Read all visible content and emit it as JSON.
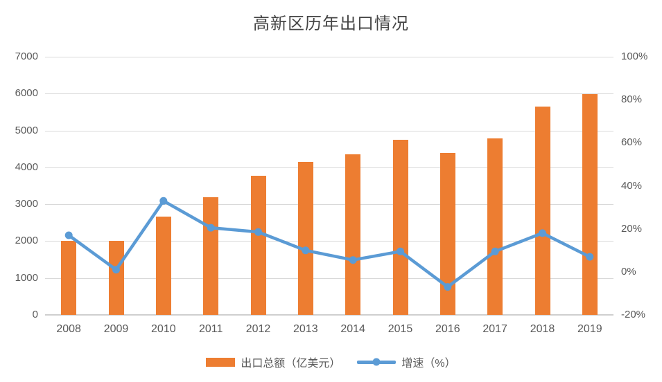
{
  "chart_data": {
    "type": "combo-bar-line",
    "title": "高新区历年出口情况",
    "categories": [
      "2008",
      "2009",
      "2010",
      "2011",
      "2012",
      "2013",
      "2014",
      "2015",
      "2016",
      "2017",
      "2018",
      "2019"
    ],
    "series": [
      {
        "name": "出口总额（亿美元）",
        "type": "bar",
        "axis": "left",
        "color": "#ED7D31",
        "values": [
          2000,
          2000,
          2660,
          3190,
          3780,
          4150,
          4350,
          4740,
          4400,
          4790,
          5650,
          5990
        ]
      },
      {
        "name": "增速（%）",
        "type": "line",
        "axis": "right",
        "color": "#5B9BD5",
        "values": [
          17,
          1,
          33,
          20.5,
          18.5,
          10,
          5.5,
          9.5,
          -7,
          9.5,
          18,
          7
        ]
      }
    ],
    "left_axis": {
      "min": 0,
      "max": 7000,
      "step": 1000,
      "tick_labels": [
        "0",
        "1000",
        "2000",
        "3000",
        "4000",
        "5000",
        "6000",
        "7000"
      ]
    },
    "right_axis": {
      "min": -20,
      "max": 100,
      "step": 20,
      "tick_labels": [
        "-20%",
        "0%",
        "20%",
        "40%",
        "60%",
        "80%",
        "100%"
      ]
    },
    "grid": true,
    "legend_position": "bottom",
    "colors": {
      "grid": "#D9D9D9",
      "axis_line": "#CFCFCF",
      "axis_text": "#595959",
      "title_text": "#454545",
      "background": "#FFFFFF"
    }
  }
}
